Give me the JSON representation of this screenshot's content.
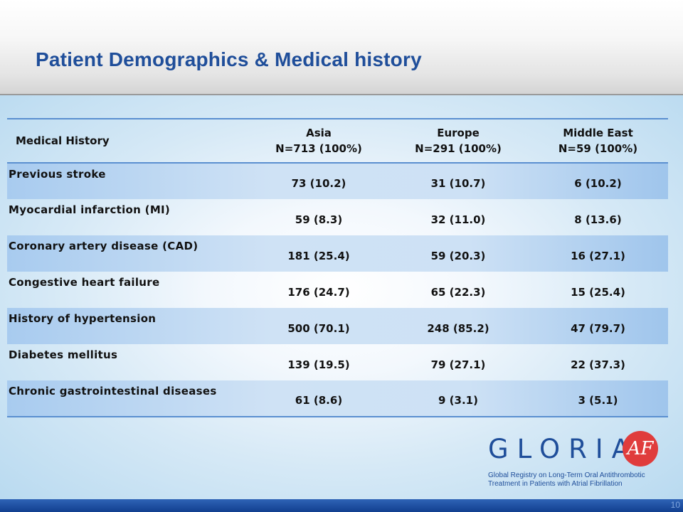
{
  "slide": {
    "title": "Patient Demographics & Medical history",
    "page_number": "10"
  },
  "table": {
    "headers": [
      {
        "line1": "Medical History",
        "line2": ""
      },
      {
        "line1": "Asia",
        "line2": "N=713 (100%)"
      },
      {
        "line1": "Europe",
        "line2": "N=291 (100%)"
      },
      {
        "line1": "Middle East",
        "line2": "N=59 (100%)"
      }
    ],
    "rows": [
      {
        "label": "Previous stroke",
        "asia": "73 (10.2)",
        "europe": "31 (10.7)",
        "middle_east": "6 (10.2)"
      },
      {
        "label": "Myocardial infarction (MI)",
        "asia": "59 (8.3)",
        "europe": "32 (11.0)",
        "middle_east": "8 (13.6)"
      },
      {
        "label": "Coronary artery disease (CAD)",
        "asia": "181 (25.4)",
        "europe": "59 (20.3)",
        "middle_east": "16 (27.1)"
      },
      {
        "label": "Congestive heart failure",
        "asia": "176 (24.7)",
        "europe": "65 (22.3)",
        "middle_east": "15 (25.4)"
      },
      {
        "label": "History of hypertension",
        "asia": "500 (70.1)",
        "europe": "248 (85.2)",
        "middle_east": "47 (79.7)"
      },
      {
        "label": "Diabetes mellitus",
        "asia": "139 (19.5)",
        "europe": "79 (27.1)",
        "middle_east": "22 (37.3)"
      },
      {
        "label": "Chronic gastrointestinal diseases",
        "asia": "61 (8.6)",
        "europe": "9 (3.1)",
        "middle_east": "3 (5.1)"
      }
    ]
  },
  "logo": {
    "wordmark": "GLORIA",
    "badge": "AF",
    "tagline_line1": "Global Registry on Long-Term Oral Antithrombotic",
    "tagline_line2": "Treatment in Patients with Atrial Fibrillation"
  },
  "colors": {
    "title": "#1f4e9a",
    "row_shade": "#cde1f5",
    "rule": "#5a8fd0",
    "logo_badge": "#e03c3c",
    "footer": "#123f8f"
  }
}
